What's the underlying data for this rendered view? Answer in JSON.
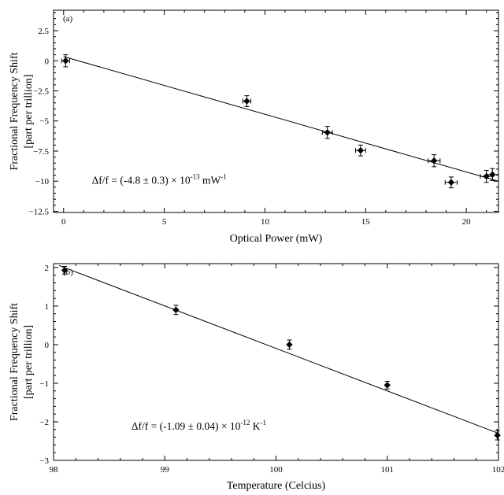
{
  "chart_data": [
    {
      "type": "scatter",
      "panel_label": "(a)",
      "xlabel": "Optical Power (mW)",
      "ylabel": [
        "Fractional Frequency Shift",
        "[part per trillion]"
      ],
      "xlim": [
        -0.5,
        21.6
      ],
      "ylim": [
        -12.6,
        4.2
      ],
      "xticks": [
        0,
        5,
        10,
        15,
        20
      ],
      "yticks": [
        2.5,
        0,
        -2.5,
        -5,
        -7.5,
        -10,
        -12.5
      ],
      "ytick_labels": [
        "2.5",
        "0",
        "−2.5",
        "−5",
        "−7.5",
        "−10",
        "−12.5"
      ],
      "points": [
        {
          "x": 0.1,
          "y": 0.0,
          "yerr": 0.5,
          "xerr": 0.2
        },
        {
          "x": 9.1,
          "y": -3.35,
          "yerr": 0.45,
          "xerr": 0.2
        },
        {
          "x": 13.1,
          "y": -5.95,
          "yerr": 0.5,
          "xerr": 0.25
        },
        {
          "x": 14.75,
          "y": -7.45,
          "yerr": 0.45,
          "xerr": 0.25
        },
        {
          "x": 18.4,
          "y": -8.3,
          "yerr": 0.5,
          "xerr": 0.3
        },
        {
          "x": 19.25,
          "y": -10.1,
          "yerr": 0.45,
          "xerr": 0.3
        },
        {
          "x": 21.0,
          "y": -9.6,
          "yerr": 0.5,
          "xerr": 0.3
        },
        {
          "x": 21.3,
          "y": -9.45,
          "yerr": 0.5,
          "xerr": 0.3
        }
      ],
      "fit_line": {
        "x": [
          0,
          21.6
        ],
        "y": [
          0.35,
          -10.0
        ]
      },
      "annotation": {
        "text": "Δf/f = (-4.8 ± 0.3) × 10",
        "exponent": "-13",
        "unit": " mW",
        "unit_exponent": "-1",
        "x": 1.4,
        "y": -10.2
      },
      "grid": false
    },
    {
      "type": "scatter",
      "panel_label": "(b)",
      "xlabel": "Temperature (Celcius)",
      "ylabel": [
        "Fractional Frequency Shift",
        "[part per trillion]"
      ],
      "xlim": [
        98.0,
        102.0
      ],
      "ylim": [
        -3.0,
        2.1
      ],
      "xticks": [
        98,
        99,
        100,
        101,
        102
      ],
      "yticks": [
        2,
        1,
        0,
        -1,
        -2,
        -3
      ],
      "ytick_labels": [
        "2",
        "1",
        "0",
        "−1",
        "−2",
        "−3"
      ],
      "points": [
        {
          "x": 98.1,
          "y": 1.93,
          "yerr": 0.1,
          "xerr": 0
        },
        {
          "x": 99.1,
          "y": 0.9,
          "yerr": 0.12,
          "xerr": 0
        },
        {
          "x": 100.12,
          "y": 0.0,
          "yerr": 0.12,
          "xerr": 0
        },
        {
          "x": 101.0,
          "y": -1.05,
          "yerr": 0.1,
          "xerr": 0
        },
        {
          "x": 101.99,
          "y": -2.35,
          "yerr": 0.12,
          "xerr": 0
        }
      ],
      "fit_line": {
        "x": [
          98.05,
          102.0
        ],
        "y": [
          2.05,
          -2.3
        ]
      },
      "annotation": {
        "text": "Δf/f = (-1.09 ± 0.04) × 10",
        "exponent": "-12",
        "unit": " K",
        "unit_exponent": "-1",
        "x": 98.7,
        "y": -2.2
      },
      "grid": false
    }
  ]
}
